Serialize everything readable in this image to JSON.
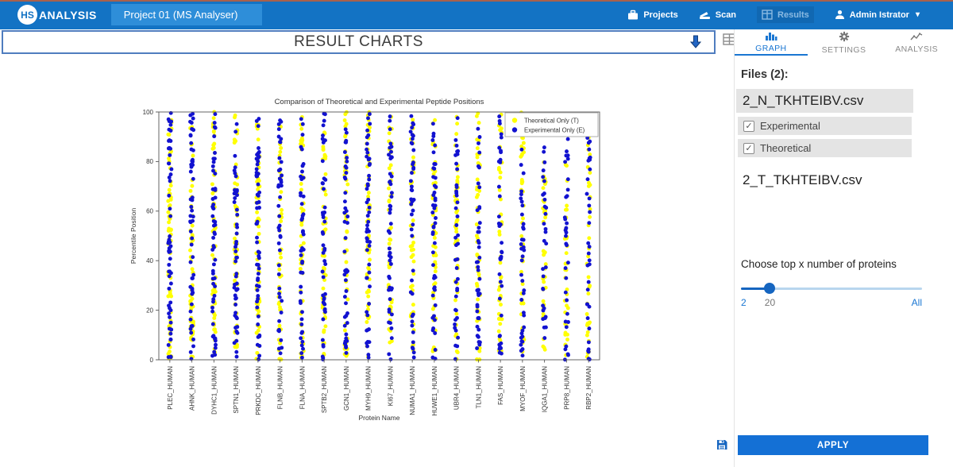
{
  "navbar": {
    "logo_circle_text": "HS",
    "logo_text": "ANALYSIS",
    "project_title": "Project 01 (MS Analyser)",
    "nav_projects": "Projects",
    "nav_scan": "Scan",
    "nav_results": "Results",
    "nav_user": "Admin Istrator"
  },
  "main": {
    "header_title": "RESULT CHARTS"
  },
  "sidebar": {
    "tab_graph": "GRAPH",
    "tab_settings": "SETTINGS",
    "tab_analysis": "ANALYSIS",
    "files_heading": "Files (2):",
    "file_1_name": "2_N_TKHTEIBV.csv",
    "checkbox_experimental": "Experimental",
    "checkbox_theoretical": "Theoretical",
    "file_2_name": "2_T_TKHTEIBV.csv",
    "slider_label": "Choose top x number of proteins",
    "slider_min": "2",
    "slider_value": "20",
    "slider_max": "All",
    "slider_percent": 16,
    "apply_label": "APPLY"
  },
  "chart_data": {
    "type": "scatter",
    "title": "Comparison of Theoretical and Experimental Peptide Positions",
    "xlabel": "Protein Name",
    "ylabel": "Percentile Position",
    "ylim": [
      0,
      100
    ],
    "yticks": [
      0,
      20,
      40,
      60,
      80,
      100
    ],
    "legend_position": "upper right",
    "categories": [
      "PLEC_HUMAN",
      "AHNK_HUMAN",
      "DYHC1_HUMAN",
      "SPTN1_HUMAN",
      "PRKDC_HUMAN",
      "FLNB_HUMAN",
      "FLNA_HUMAN",
      "SPTB2_HUMAN",
      "GCN1_HUMAN",
      "MYH9_HUMAN",
      "KI67_HUMAN",
      "NUMA1_HUMAN",
      "HUWE1_HUMAN",
      "UBR4_HUMAN",
      "TLN1_HUMAN",
      "FAS_HUMAN",
      "MYOF_HUMAN",
      "IQGA1_HUMAN",
      "PRP8_HUMAN",
      "RBP2_HUMAN"
    ],
    "series": [
      {
        "name": "Theoretical Only (T)",
        "color": "#ffff00",
        "marker": "circle",
        "counts": [
          62,
          58,
          60,
          55,
          62,
          48,
          50,
          52,
          50,
          56,
          52,
          48,
          52,
          46,
          48,
          42,
          44,
          40,
          38,
          42
        ]
      },
      {
        "name": "Experimental Only (E)",
        "color": "#1212d0",
        "marker": "circle",
        "counts": [
          58,
          54,
          56,
          50,
          58,
          44,
          46,
          48,
          46,
          52,
          48,
          44,
          48,
          42,
          44,
          38,
          40,
          36,
          34,
          38
        ]
      }
    ],
    "distribution": "uniform percentile positions 0-100 per protein column",
    "seed": 20240817
  }
}
